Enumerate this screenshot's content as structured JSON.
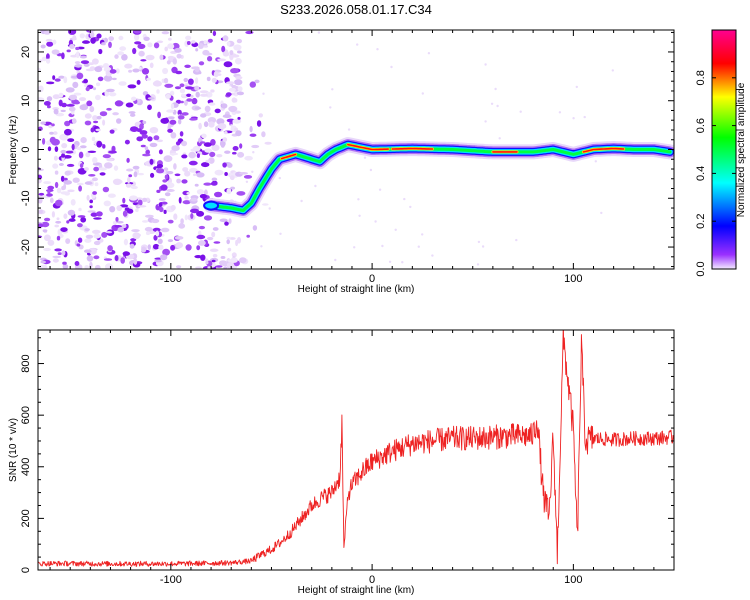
{
  "figure_title": "S233.2026.058.01.17.C34",
  "chart_data": [
    {
      "type": "heatmap",
      "title": "",
      "xlabel": "Height of straight line (km)",
      "ylabel": "Frequency (Hz)",
      "xlim": [
        -166,
        150
      ],
      "ylim": [
        -24.5,
        24.5
      ],
      "xticks": [
        -100,
        0,
        100
      ],
      "yticks": [
        -20,
        -10,
        0,
        10,
        20
      ],
      "grid": false,
      "colormap": [
        "#e8d8f8",
        "#8800ff",
        "#0000ff",
        "#00ffff",
        "#00ff00",
        "#ffff00",
        "#ff0000",
        "#ff0080"
      ],
      "colorbar": {
        "label": "Normalized spectral amplitude",
        "range": [
          0,
          1
        ],
        "ticks": [
          0.0,
          0.2,
          0.4,
          0.6,
          0.8
        ]
      },
      "ridge": {
        "x": [
          -80,
          -70,
          -64,
          -60,
          -56,
          -50,
          -46,
          -42,
          -38,
          -34,
          -30,
          -26,
          -22,
          -18,
          -12,
          -6,
          0,
          20,
          40,
          60,
          80,
          90,
          100,
          110,
          120,
          130,
          140,
          148
        ],
        "y": [
          -11.5,
          -12,
          -12.5,
          -11,
          -8,
          -4,
          -2,
          -1.5,
          -1,
          -1.5,
          -2,
          -2.5,
          -1,
          0,
          1,
          0.5,
          0,
          0.2,
          0,
          -0.5,
          -0.5,
          0,
          -1,
          0,
          0.2,
          0,
          0,
          -0.5
        ]
      },
      "noise_region_x": [
        -166,
        -65
      ]
    },
    {
      "type": "line",
      "title": "",
      "xlabel": "Height of straight line (km)",
      "ylabel": "SNR (10 * v/v)",
      "xlim": [
        -166,
        150
      ],
      "ylim": [
        0,
        930
      ],
      "xticks": [
        -100,
        0,
        100
      ],
      "yticks": [
        0,
        200,
        400,
        600,
        800
      ],
      "grid": false,
      "color": "#ee2222",
      "series": [
        {
          "x": [
            -166,
            -150,
            -130,
            -110,
            -90,
            -70,
            -60,
            -55,
            -50,
            -45,
            -40,
            -35,
            -30,
            -25,
            -20,
            -16,
            -15,
            -14,
            -12,
            -10,
            -5,
            0,
            10,
            20,
            30,
            40,
            50,
            60,
            70,
            80,
            82,
            85,
            88,
            90,
            92,
            95,
            100,
            102,
            104,
            106,
            110,
            120,
            130,
            140,
            150
          ],
          "y": [
            25,
            25,
            24,
            24,
            25,
            28,
            35,
            60,
            80,
            110,
            150,
            200,
            250,
            280,
            300,
            360,
            570,
            80,
            290,
            330,
            380,
            420,
            460,
            490,
            500,
            510,
            510,
            515,
            520,
            520,
            590,
            290,
            200,
            520,
            60,
            900,
            540,
            110,
            870,
            500,
            510,
            505,
            510,
            510,
            515
          ]
        }
      ]
    }
  ]
}
